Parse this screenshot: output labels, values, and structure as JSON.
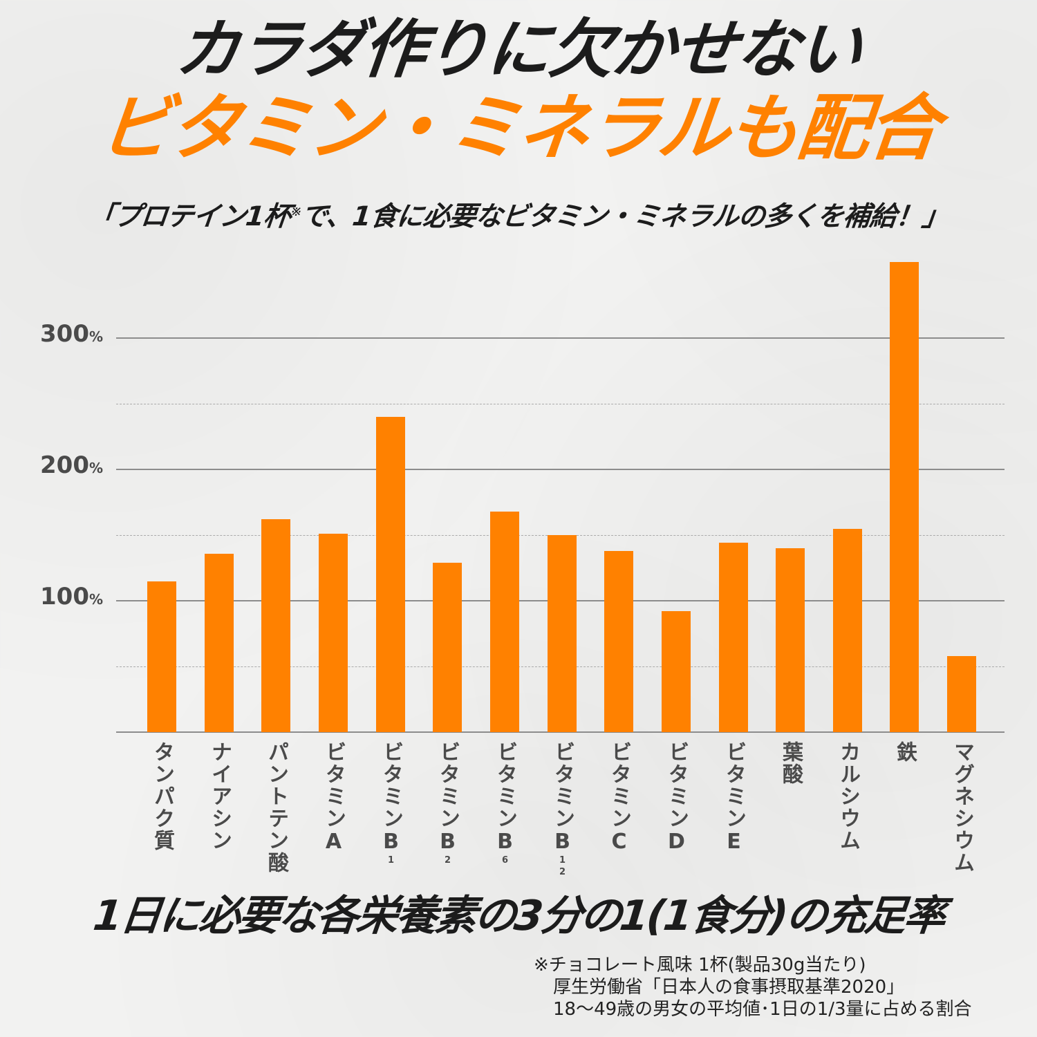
{
  "header": {
    "title_line1": "カラダ作りに欠かせない",
    "title_line2": "ビタミン・ミネラルも配合",
    "subtitle_prefix": "「プロテイン1杯",
    "subtitle_ref": "※",
    "subtitle_suffix": "で、1食に必要なビタミン・ミネラルの多くを補給！」"
  },
  "colors": {
    "accent": "#FF8100",
    "title": "#1C1C1C",
    "axis_text": "#4A4A4A",
    "gridline": "#8C8C8C",
    "background": "#F2F2F1"
  },
  "yaxis": {
    "ticks": [
      {
        "value": "100",
        "unit": "%"
      },
      {
        "value": "200",
        "unit": "%"
      },
      {
        "value": "300",
        "unit": "%"
      }
    ]
  },
  "xaxis": {
    "labels": [
      {
        "main": "タンパク質",
        "sub": ""
      },
      {
        "main": "ナイアシン",
        "sub": ""
      },
      {
        "main": "パントテン酸",
        "sub": ""
      },
      {
        "main": "ビタミンA",
        "sub": ""
      },
      {
        "main": "ビタミンB",
        "sub": "1"
      },
      {
        "main": "ビタミンB",
        "sub": "2"
      },
      {
        "main": "ビタミンB",
        "sub": "6"
      },
      {
        "main": "ビタミンB",
        "sub": "12"
      },
      {
        "main": "ビタミンC",
        "sub": ""
      },
      {
        "main": "ビタミンD",
        "sub": ""
      },
      {
        "main": "ビタミンE",
        "sub": ""
      },
      {
        "main": "葉酸",
        "sub": ""
      },
      {
        "main": "カルシウム",
        "sub": ""
      },
      {
        "main": "鉄",
        "sub": ""
      },
      {
        "main": "マグネシウム",
        "sub": ""
      }
    ]
  },
  "footer": {
    "caption": "1日に必要な各栄養素の3分の1(1食分)の充足率",
    "note1": "※チョコレート風味 1杯(製品30g当たり)",
    "note2": "厚生労働省「日本人の食事摂取基準2020」",
    "note3": "18〜49歳の男女の平均値･1日の1/3量に占める割合"
  },
  "chart_data": {
    "type": "bar",
    "title": "カラダ作りに欠かせない ビタミン・ミネラルも配合",
    "subtitle": "「プロテイン1杯※で、1食に必要なビタミン・ミネラルの多くを補給！」",
    "xlabel": "",
    "ylabel": "1日に必要な各栄養素の3分の1(1食分)の充足率",
    "categories": [
      "タンパク質",
      "ナイアシン",
      "パントテン酸",
      "ビタミンA",
      "ビタミンB1",
      "ビタミンB2",
      "ビタミンB6",
      "ビタミンB12",
      "ビタミンC",
      "ビタミンD",
      "ビタミンE",
      "葉酸",
      "カルシウム",
      "鉄",
      "マグネシウム"
    ],
    "values": [
      115,
      136,
      162,
      151,
      240,
      129,
      168,
      150,
      138,
      92,
      144,
      140,
      155,
      358,
      58
    ],
    "unit": "%",
    "ylim": [
      0,
      360
    ],
    "yticks": [
      100,
      200,
      300
    ],
    "minor_gridlines": [
      50,
      150,
      250
    ],
    "grid": true,
    "legend": null,
    "bar_color": "#FF8100"
  }
}
